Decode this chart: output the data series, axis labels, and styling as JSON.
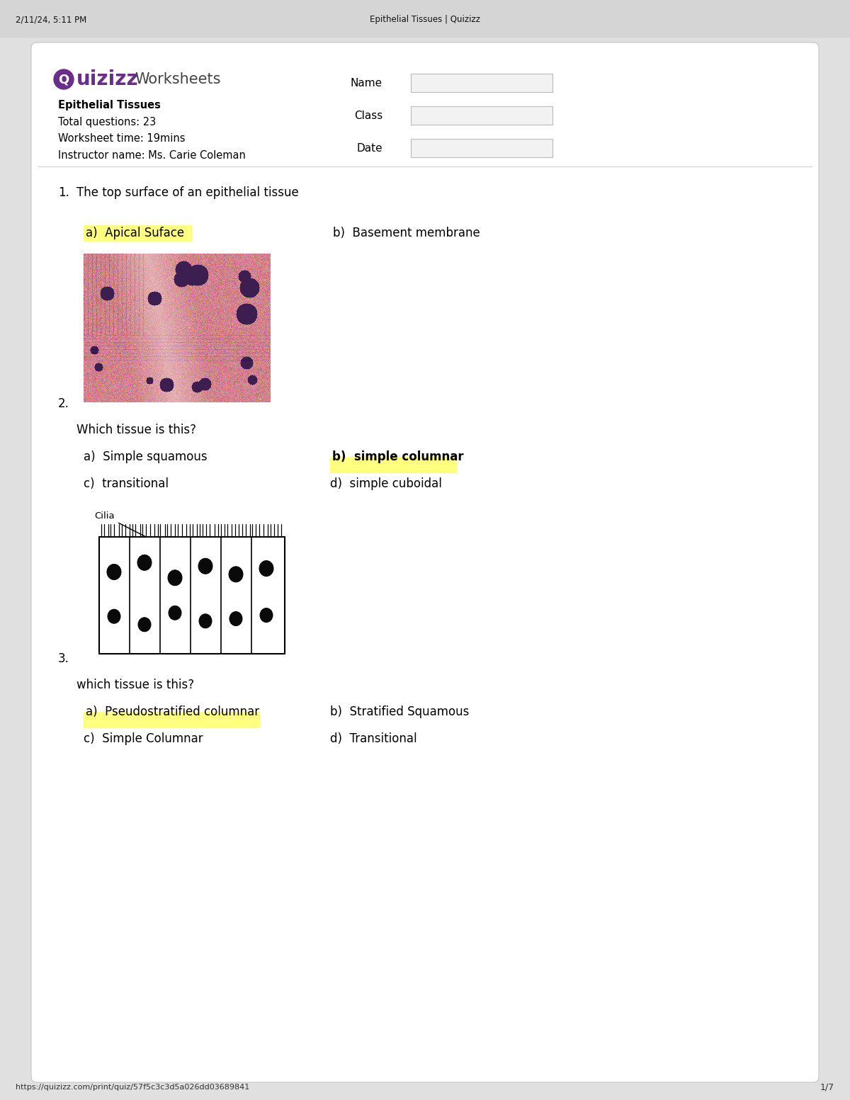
{
  "browser_header_text": "2/11/24, 5:11 PM",
  "browser_title": "Epithelial Tissues | Quizizz",
  "browser_url": "https://quizizz.com/print/quiz/57f5c3c3d5a026dd03689841",
  "page_number": "1/7",
  "logo_subtext": "Worksheets",
  "worksheet_title": "Epithelial Tissues",
  "total_questions": "Total questions: 23",
  "worksheet_time": "Worksheet time: 19mins",
  "instructor": "Instructor name: Ms. Carie Coleman",
  "name_label": "Name",
  "class_label": "Class",
  "date_label": "Date",
  "q1_num": "1.",
  "q1_text": "The top surface of an epithelial tissue",
  "q1_a": "a)  Apical Suface",
  "q1_b": "b)  Basement membrane",
  "q2_num": "2.",
  "q2_question": "Which tissue is this?",
  "q2_a": "a)  Simple squamous",
  "q2_b": "b)  simple columnar",
  "q2_c": "c)  transitional",
  "q2_d": "d)  simple cuboidal",
  "q3_num": "3.",
  "q3_question": "which tissue is this?",
  "q3_a": "a)  Pseudostratified columnar",
  "q3_b": "b)  Stratified Squamous",
  "q3_c": "c)  Simple Columnar",
  "q3_d": "d)  Transitional",
  "cilia_label": "Cilia",
  "highlight_color": "#FFFF80",
  "logo_color": "#6B2D8B",
  "bg_color": "#e0e0e0",
  "card_bg": "#ffffff",
  "border_color": "#cccccc",
  "divider_color": "#d0d0d0",
  "name_box_color": "#f2f2f2",
  "name_box_border": "#bbbbbb"
}
